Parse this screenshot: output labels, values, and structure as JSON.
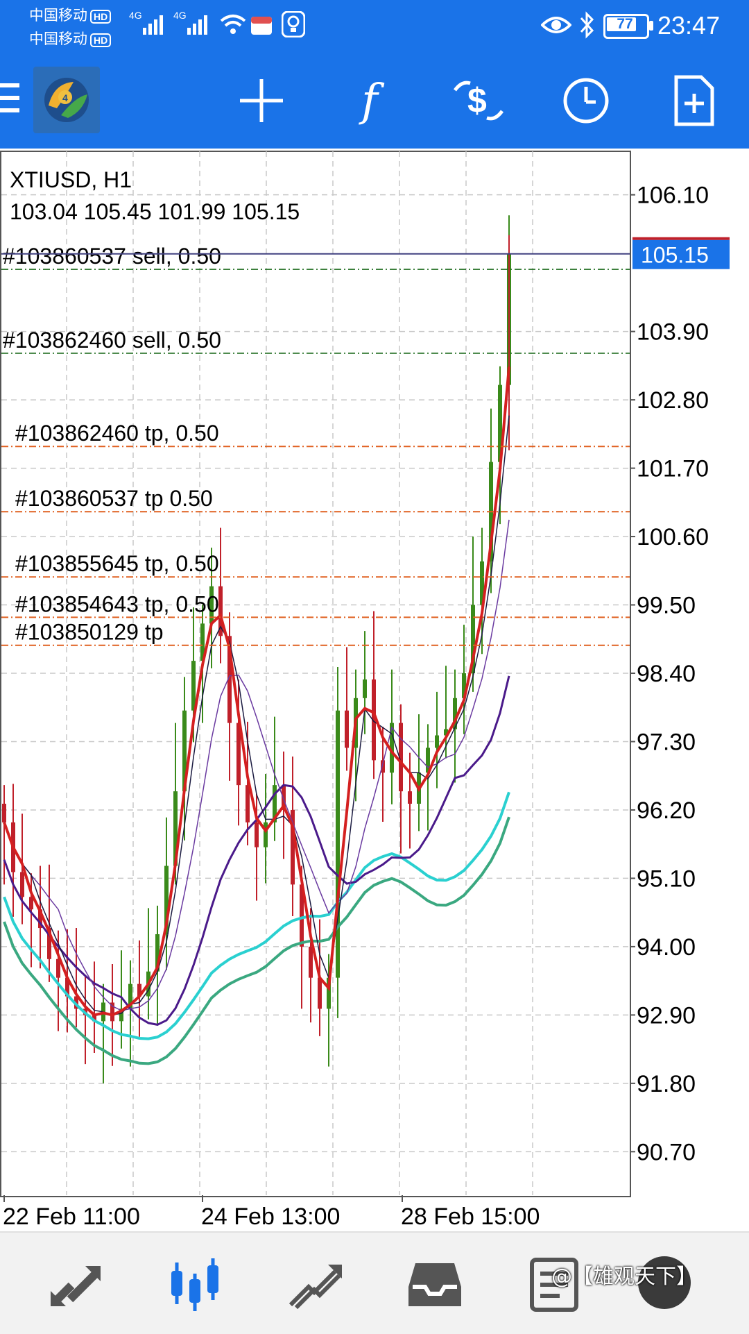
{
  "status": {
    "carrier1": "中国移动",
    "carrier2": "中国移动",
    "hd": "HD",
    "net1": "4G",
    "net2": "4G",
    "battery": "77",
    "time": "23:47"
  },
  "toolbar": {
    "icons": [
      "menu-icon",
      "metatrader-logo",
      "crosshair-icon",
      "indicators-icon",
      "trade-icon",
      "timeframe-icon",
      "new-order-icon"
    ],
    "indicator_glyph": "f"
  },
  "chart": {
    "symbol": "XTIUSD, H1",
    "ohlc": "103.04 105.45 101.99 105.15",
    "current_price": "105.15",
    "price_labels": [
      "106.10",
      "103.90",
      "102.80",
      "101.70",
      "100.60",
      "99.50",
      "98.40",
      "97.30",
      "96.20",
      "95.10",
      "94.00",
      "92.90",
      "91.80",
      "90.70"
    ],
    "date_labels": [
      "22 Feb 11:00",
      "24 Feb 13:00",
      "28 Feb 15:00"
    ],
    "orders": [
      {
        "label": "#103860537 sell, 0.50",
        "type": "sell",
        "price": 104.9
      },
      {
        "label": "#103862460 sell, 0.50",
        "type": "sell",
        "price": 103.55
      },
      {
        "label": "#103862460 tp",
        "label_suffix": ", 0.50",
        "type": "tp",
        "price": 102.05
      },
      {
        "label": "#103860537 tp",
        "label_suffix": " 0.50",
        "type": "tp",
        "price": 101.0
      },
      {
        "label": "#103855645 tp",
        "label_suffix": ", 0.50",
        "type": "tp",
        "price": 99.95
      },
      {
        "label": "#103854643 tp",
        "label_suffix": ", 0.50",
        "type": "tp",
        "price": 99.3
      },
      {
        "label": "#103850129 tp",
        "type": "tp",
        "price": 98.85
      }
    ],
    "colors": {
      "bull": "#3a8a1a",
      "bear": "#c0202a",
      "ma_fast": "#d42020",
      "ma_cyan": "#2ad0d0",
      "ma_green": "#3aa880",
      "ma_purple": "#4a1a8a",
      "sell_line": "#1a6a1a",
      "tp_line": "#e06020",
      "price_tag": "#1a73e8"
    }
  },
  "chart_data": {
    "type": "candlestick",
    "symbol": "XTIUSD",
    "timeframe": "H1",
    "ylim": [
      90.0,
      106.8
    ],
    "ohlc_last": {
      "open": 103.04,
      "high": 105.45,
      "low": 101.99,
      "close": 105.15
    },
    "yticks": [
      106.1,
      103.9,
      102.8,
      101.7,
      100.6,
      99.5,
      98.4,
      97.3,
      96.2,
      95.1,
      94.0,
      92.9,
      91.8,
      90.7
    ],
    "xticks": [
      "22 Feb 11:00",
      "24 Feb 13:00",
      "28 Feb 15:00"
    ],
    "close_path": [
      96.0,
      95.2,
      94.8,
      94.6,
      94.3,
      93.8,
      93.5,
      93.2,
      93.0,
      92.9,
      92.8,
      93.1,
      92.8,
      93.0,
      93.4,
      93.2,
      93.6,
      94.2,
      95.3,
      96.5,
      97.8,
      98.6,
      99.2,
      99.8,
      99.0,
      97.6,
      96.6,
      96.0,
      95.6,
      96.0,
      96.6,
      96.2,
      95.0,
      94.0,
      93.5,
      93.0,
      93.5,
      97.8,
      97.2,
      98.0,
      98.3,
      97.0,
      96.8,
      97.6,
      96.5,
      96.3,
      96.8,
      97.2,
      97.4,
      97.5,
      98.0,
      98.4,
      99.5,
      100.2,
      101.8,
      103.04,
      105.15
    ],
    "series": [
      {
        "name": "MA fast",
        "color": "#d42020"
      },
      {
        "name": "MA cyan",
        "color": "#2ad0d0"
      },
      {
        "name": "MA green",
        "color": "#3aa880"
      },
      {
        "name": "MA purple",
        "color": "#4a1a8a"
      }
    ]
  },
  "bottom": {
    "icons": [
      "quotes-icon",
      "chart-icon",
      "trade-icon",
      "history-icon",
      "journal-icon"
    ],
    "watermark": "@【雄观天下】"
  }
}
